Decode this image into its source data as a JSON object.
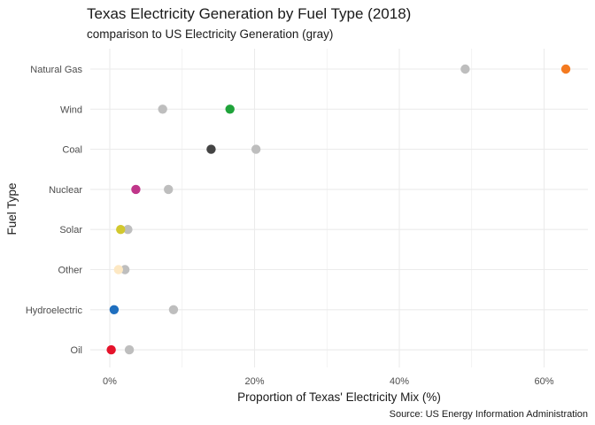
{
  "chart_data": {
    "type": "scatter",
    "title": "Texas Electricity Generation by Fuel Type (2018)",
    "subtitle": "comparison to US Electricity Generation (gray)",
    "xlabel": "Proportion of Texas' Electricity Mix (%)",
    "ylabel": "Fuel Type",
    "caption": "Source: US Energy Information Administration",
    "xlim": [
      -2,
      66
    ],
    "x_ticks": [
      0,
      20,
      40,
      60
    ],
    "x_tick_labels": [
      "0%",
      "20%",
      "40%",
      "60%"
    ],
    "grid": true,
    "categories": [
      "Natural Gas",
      "Wind",
      "Coal",
      "Nuclear",
      "Solar",
      "Other",
      "Hydroelectric",
      "Oil"
    ],
    "us_color": "#bebebe",
    "series": [
      {
        "values": [
          49.1,
          7.3,
          20.2,
          8.1,
          2.5,
          2.1,
          8.8,
          2.7
        ]
      },
      {
        "values": [
          63.0,
          16.6,
          14.0,
          3.6,
          1.5,
          1.2,
          0.6,
          0.2
        ],
        "colors": [
          "#f47a20",
          "#1fa33a",
          "#444444",
          "#c0368a",
          "#d2c82e",
          "#fde8c3",
          "#1f6fbf",
          "#e5132b"
        ]
      }
    ]
  }
}
